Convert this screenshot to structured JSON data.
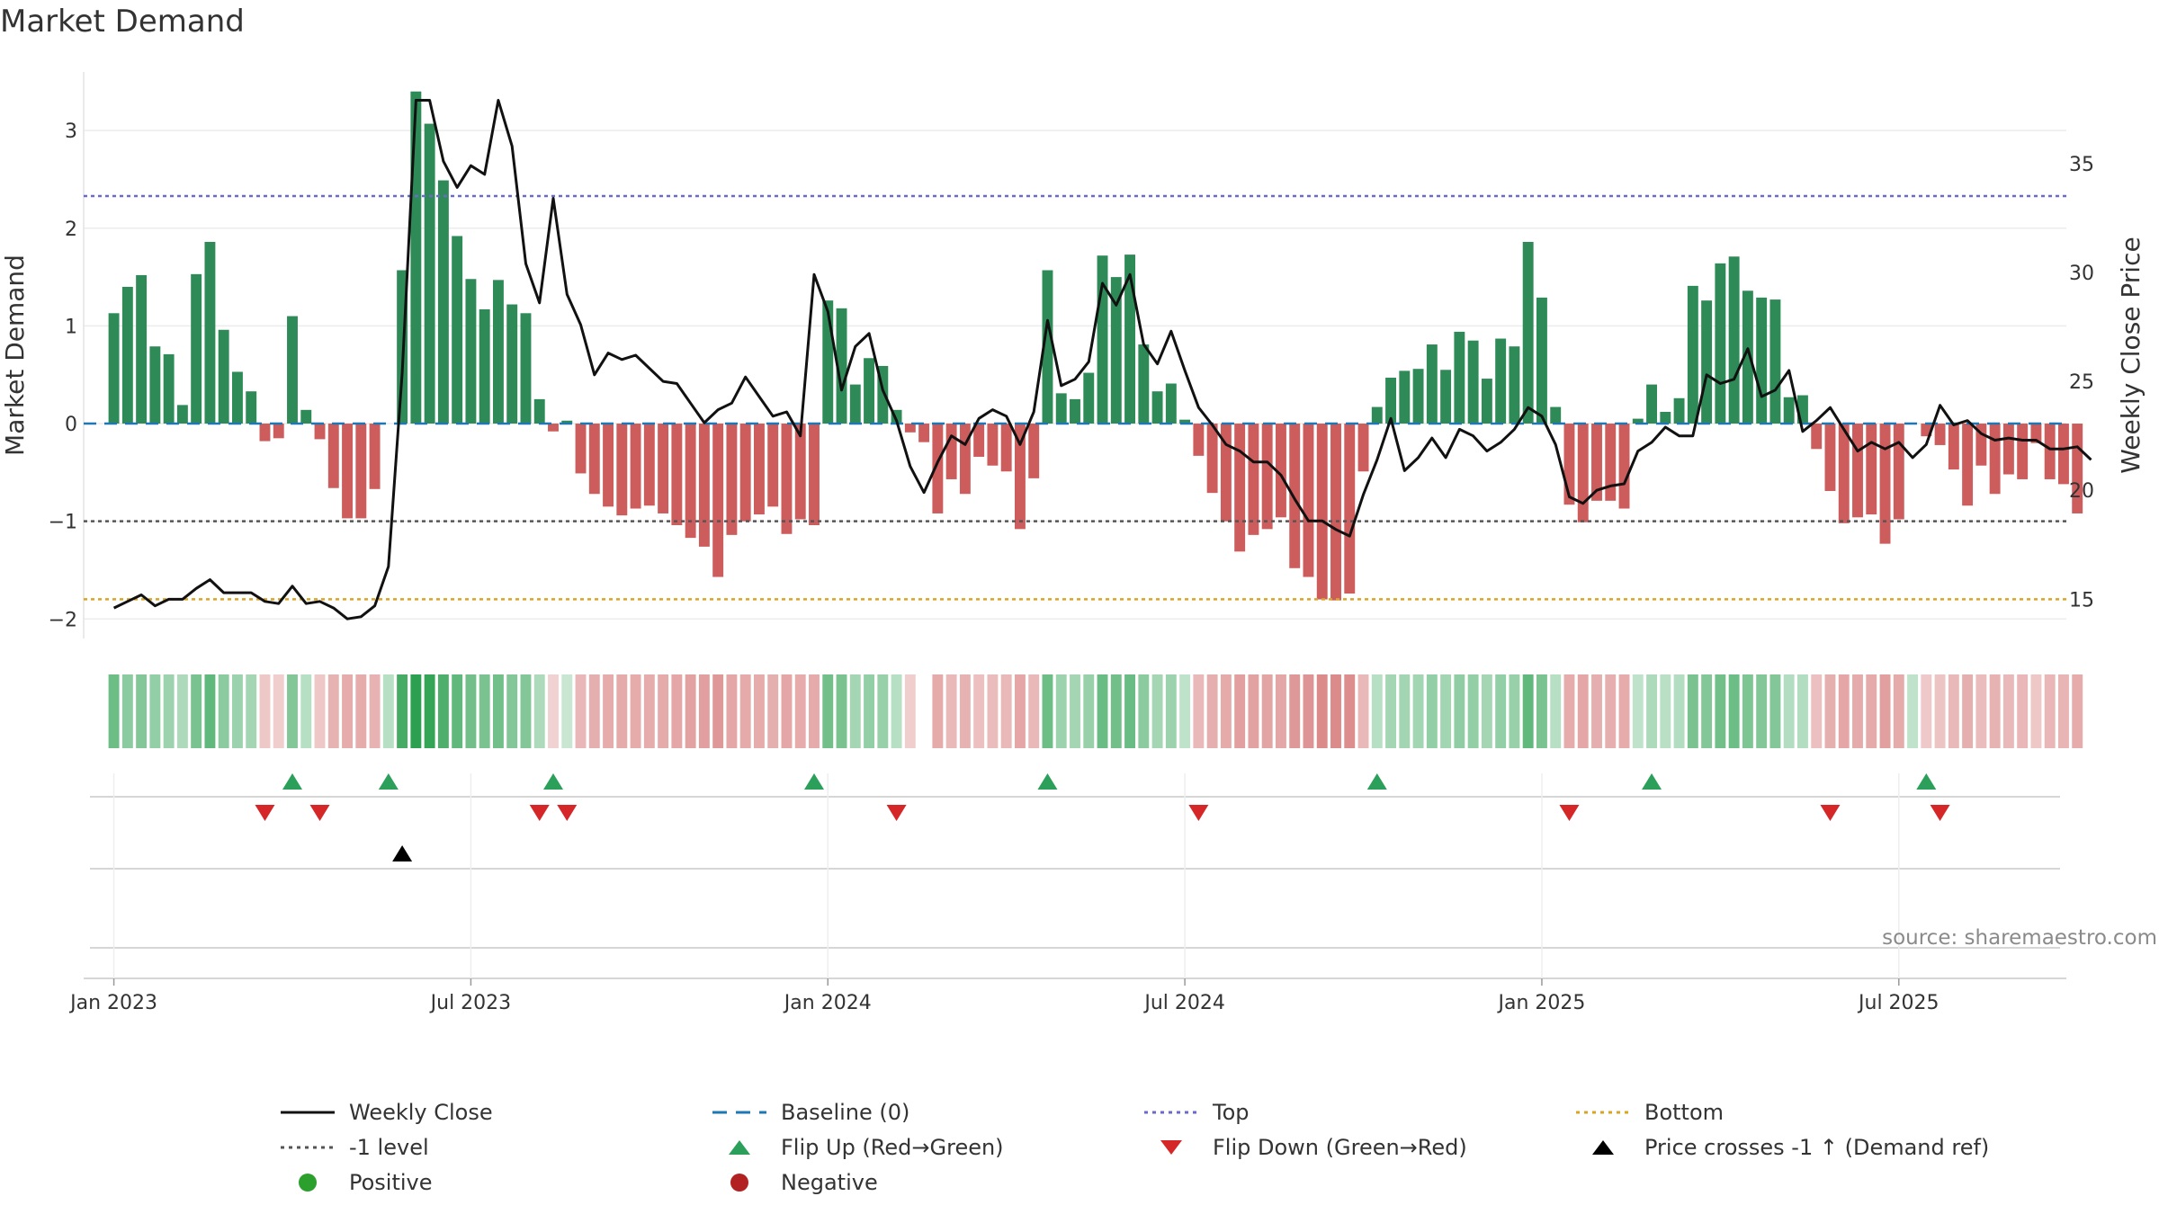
{
  "title": "Market Demand",
  "source": "source: sharemaestro.com",
  "chart_data": {
    "type": "bar",
    "title": "Market Demand",
    "ylabel": "Market Demand",
    "y2label": "Weekly Close Price",
    "ylim": [
      -2.2,
      3.6
    ],
    "y2lim": [
      13.2,
      39.2
    ],
    "yticks": [
      -2,
      -1,
      0,
      1,
      2,
      3
    ],
    "ytick_labels": [
      "−2",
      "−1",
      "0",
      "1",
      "2",
      "3"
    ],
    "y2ticks": [
      15,
      20,
      25,
      30,
      35
    ],
    "y2tick_labels": [
      "15",
      "20",
      "25",
      "30",
      "35"
    ],
    "xlim": [
      -2.2,
      142.2
    ],
    "xticks": [
      0,
      26,
      52,
      78,
      104,
      130
    ],
    "xtick_labels": [
      "Jan 2023",
      "Jul 2023",
      "Jan 2024",
      "Jul 2024",
      "Jan 2025",
      "Jul 2025"
    ],
    "reference_lines": {
      "baseline": 0,
      "top": 2.33,
      "minus_one": -1,
      "bottom_price": 15
    },
    "demand": [
      1.13,
      1.4,
      1.52,
      0.79,
      0.71,
      0.19,
      1.53,
      1.86,
      0.96,
      0.53,
      0.33,
      -0.18,
      -0.15,
      1.1,
      0.14,
      -0.16,
      -0.66,
      -0.97,
      -0.97,
      -0.67,
      0,
      1.57,
      3.4,
      3.07,
      2.49,
      1.92,
      1.48,
      1.17,
      1.47,
      1.22,
      1.13,
      0.25,
      -0.08,
      0.03,
      -0.51,
      -0.72,
      -0.85,
      -0.94,
      -0.87,
      -0.84,
      -0.92,
      -1.04,
      -1.17,
      -1.26,
      -1.57,
      -1.14,
      -1.0,
      -0.93,
      -0.85,
      -1.13,
      -0.98,
      -1.04,
      1.26,
      1.18,
      0.4,
      0.67,
      0.59,
      0.14,
      -0.09,
      -0.19,
      -0.92,
      -0.57,
      -0.72,
      -0.34,
      -0.43,
      -0.49,
      -1.08,
      -0.56,
      1.57,
      0.31,
      0.25,
      0.52,
      1.72,
      1.5,
      1.73,
      0.81,
      0.33,
      0.41,
      0.04,
      -0.33,
      -0.71,
      -1.0,
      -1.31,
      -1.14,
      -1.08,
      -0.96,
      -1.48,
      -1.57,
      -1.8,
      -1.81,
      -1.74,
      -0.49,
      0.17,
      0.47,
      0.54,
      0.56,
      0.81,
      0.55,
      0.94,
      0.85,
      0.46,
      0.87,
      0.79,
      1.86,
      1.29,
      0.17,
      -0.83,
      -1.01,
      -0.79,
      -0.79,
      -0.87,
      0.05,
      0.4,
      0.12,
      0.26,
      1.41,
      1.26,
      1.64,
      1.71,
      1.36,
      1.29,
      1.27,
      0.27,
      0.29,
      -0.26,
      -0.69,
      -1.02,
      -0.96,
      -0.93,
      -1.23,
      -0.98,
      0,
      -0.13,
      -0.22,
      -0.47,
      -0.84,
      -0.43,
      -0.72,
      -0.52,
      -0.57,
      -0.2,
      -0.57,
      -0.62,
      -0.92
    ],
    "price": [
      14.6,
      14.9,
      15.2,
      14.7,
      15.0,
      15.0,
      15.5,
      15.9,
      15.3,
      15.3,
      15.3,
      14.9,
      14.8,
      15.6,
      14.8,
      14.9,
      14.6,
      14.1,
      14.2,
      14.7,
      16.5,
      25.4,
      37.9,
      37.9,
      35.1,
      33.9,
      34.9,
      34.5,
      37.9,
      35.8,
      30.4,
      28.6,
      33.4,
      29.0,
      27.6,
      25.3,
      26.3,
      26.0,
      26.2,
      25.6,
      25.0,
      24.9,
      24.0,
      23.1,
      23.7,
      24.0,
      25.2,
      24.3,
      23.4,
      23.6,
      22.5,
      29.9,
      28.2,
      24.6,
      26.6,
      27.2,
      24.6,
      23.2,
      21.1,
      19.9,
      21.3,
      22.5,
      22.1,
      23.3,
      23.7,
      23.4,
      22.1,
      23.6,
      27.8,
      24.8,
      25.1,
      25.9,
      29.5,
      28.5,
      29.9,
      26.7,
      25.8,
      27.3,
      25.5,
      23.8,
      23.0,
      22.1,
      21.8,
      21.3,
      21.3,
      20.7,
      19.6,
      18.6,
      18.6,
      18.2,
      17.9,
      19.8,
      21.4,
      23.3,
      20.9,
      21.5,
      22.4,
      21.5,
      22.8,
      22.5,
      21.8,
      22.2,
      22.8,
      23.8,
      23.4,
      22.1,
      19.7,
      19.4,
      20.0,
      20.2,
      20.3,
      21.8,
      22.2,
      22.9,
      22.5,
      22.5,
      25.3,
      24.9,
      25.1,
      26.5,
      24.3,
      24.6,
      25.5,
      22.7,
      23.2,
      23.8,
      22.8,
      21.8,
      22.2,
      21.9,
      22.2,
      21.5,
      22.1,
      23.9,
      23.0,
      23.2,
      22.6,
      22.3,
      22.4,
      22.3,
      22.3,
      21.9,
      21.9,
      22.0,
      21.4
    ],
    "heat_strip": [
      0.62,
      0.45,
      0.5,
      0.4,
      0.35,
      0.25,
      0.55,
      0.7,
      0.45,
      0.35,
      0.3,
      -0.2,
      -0.15,
      0.5,
      0.2,
      -0.2,
      -0.35,
      -0.4,
      -0.4,
      -0.35,
      0.2,
      0.85,
      1.0,
      0.95,
      0.8,
      0.7,
      0.6,
      0.55,
      0.6,
      0.5,
      0.5,
      0.25,
      -0.12,
      0.1,
      -0.32,
      -0.38,
      -0.4,
      -0.42,
      -0.4,
      -0.4,
      -0.42,
      -0.45,
      -0.48,
      -0.5,
      -0.55,
      -0.45,
      -0.42,
      -0.4,
      -0.38,
      -0.45,
      -0.4,
      -0.42,
      0.6,
      0.55,
      0.3,
      0.4,
      0.38,
      0.2,
      -0.15,
      -0.2,
      -0.42,
      -0.3,
      -0.35,
      -0.25,
      -0.28,
      -0.3,
      -0.45,
      -0.3,
      0.62,
      0.35,
      0.3,
      0.38,
      0.65,
      0.6,
      0.65,
      0.45,
      0.3,
      0.35,
      0.15,
      -0.3,
      -0.38,
      -0.42,
      -0.5,
      -0.48,
      -0.46,
      -0.44,
      -0.55,
      -0.58,
      -0.65,
      -0.65,
      -0.62,
      -0.3,
      0.2,
      0.3,
      0.32,
      0.32,
      0.4,
      0.32,
      0.42,
      0.4,
      0.3,
      0.4,
      0.38,
      0.7,
      0.55,
      0.2,
      -0.4,
      -0.45,
      -0.38,
      -0.38,
      -0.4,
      0.15,
      0.25,
      0.18,
      0.22,
      0.55,
      0.5,
      0.6,
      0.62,
      0.52,
      0.5,
      0.5,
      0.22,
      0.22,
      -0.25,
      -0.38,
      -0.45,
      -0.42,
      -0.42,
      -0.5,
      -0.42,
      0.15,
      -0.18,
      -0.22,
      -0.3,
      -0.38,
      -0.28,
      -0.35,
      -0.3,
      -0.32,
      -0.2,
      -0.32,
      -0.34,
      -0.4
    ],
    "strip_gaps": [
      59
    ],
    "flip_up": [
      13,
      20,
      32,
      51,
      68,
      92,
      112,
      132
    ],
    "flip_down": [
      11,
      15,
      31,
      33,
      57,
      79,
      106,
      125,
      133
    ],
    "price_cross": [
      21
    ],
    "legend": [
      "Weekly Close",
      "Baseline (0)",
      "Top",
      "Bottom",
      "-1 level",
      "Flip Up (Red→Green)",
      "Flip Down (Green→Red)",
      "Price crosses -1 ↑ (Demand ref)",
      "Positive",
      "Negative"
    ],
    "colors": {
      "positive": "#2e8b57",
      "negative": "#cd5c5c",
      "price": "#111111",
      "baseline": "#1f77b4",
      "top": "#6a6acd",
      "minus_one": "#555555",
      "bottom": "#daa520",
      "flip_up": "#2ca05a",
      "flip_down": "#d62728",
      "cross": "#000000",
      "legend_positive": "#2ca02c",
      "legend_negative": "#b22222"
    }
  }
}
